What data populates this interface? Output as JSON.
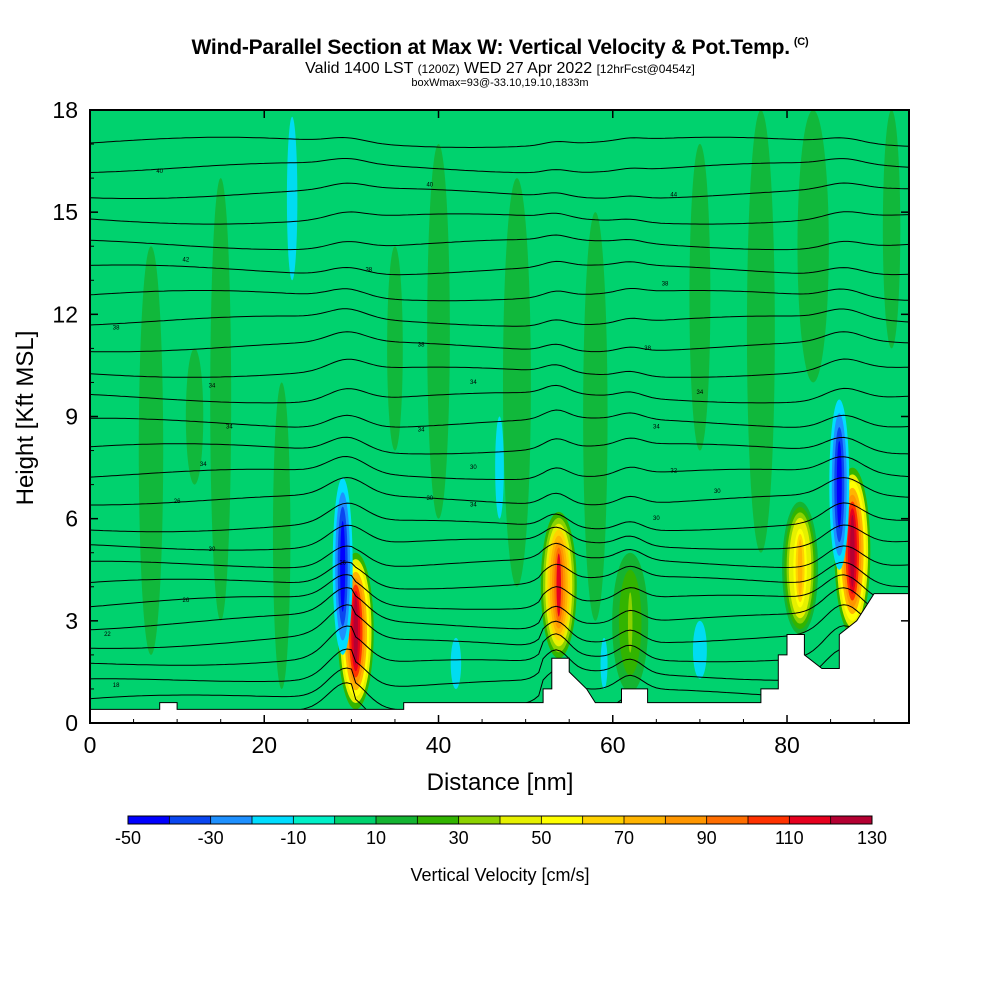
{
  "title": {
    "main": "Wind-Parallel Section at Max W: Vertical Velocity & Pot.Temp.",
    "copyright": "(C)",
    "valid_prefix": "Valid 1400 LST",
    "valid_utc": "(1200Z)",
    "valid_date": "WED 27 Apr 2022",
    "forecast": "[12hrFcst@0454z]",
    "box_info": "boxWmax=93@-33.10,19.10,1833m"
  },
  "chart_data": {
    "type": "heatmap",
    "title": "Wind-Parallel Section at Max W: Vertical Velocity & Pot.Temp.",
    "xlabel": "Distance [nm]",
    "ylabel": "Height [Kft MSL]",
    "xlim": [
      0,
      94
    ],
    "ylim": [
      0,
      18
    ],
    "x_ticks": [
      0,
      20,
      40,
      60,
      80
    ],
    "y_ticks": [
      0,
      3,
      6,
      9,
      12,
      15,
      18
    ],
    "grid": false,
    "colorbar": {
      "label": "Vertical Velocity [cm/s]",
      "min": -50,
      "step": 10,
      "tick_labels": [
        "-50",
        "-30",
        "-10",
        "10",
        "30",
        "50",
        "70",
        "90",
        "110",
        "130"
      ],
      "colors": [
        "#0000ff",
        "#0a46f0",
        "#1e90ff",
        "#00ddff",
        "#00f0c8",
        "#00d26e",
        "#14b432",
        "#32b400",
        "#8cd200",
        "#e6f000",
        "#ffff00",
        "#ffd200",
        "#ffb400",
        "#ff9600",
        "#ff6e00",
        "#ff3200",
        "#e6001e",
        "#b40032"
      ]
    },
    "background_value_cm_s": 0,
    "vertical_velocity_features": [
      {
        "x_center": 30.5,
        "z_bottom": 0.4,
        "z_top": 5.0,
        "w_max": 130,
        "sign": "updraft"
      },
      {
        "x_center": 29.0,
        "z_bottom": 2.0,
        "z_top": 7.2,
        "w_max": -50,
        "sign": "downdraft"
      },
      {
        "x_center": 53.8,
        "z_bottom": 1.9,
        "z_top": 6.2,
        "w_max": 110,
        "sign": "updraft"
      },
      {
        "x_center": 87.5,
        "z_bottom": 2.6,
        "z_top": 7.5,
        "w_max": 130,
        "sign": "updraft"
      },
      {
        "x_center": 86.0,
        "z_bottom": 4.5,
        "z_top": 9.5,
        "w_max": -50,
        "sign": "downdraft"
      },
      {
        "x_center": 81.5,
        "z_bottom": 2.6,
        "z_top": 6.5,
        "w_max": 70,
        "sign": "updraft"
      },
      {
        "x_center": 62.0,
        "z_bottom": 0.9,
        "z_top": 5.0,
        "w_max": 30,
        "sign": "updraft"
      }
    ],
    "theta_contour_labels": [
      {
        "x": 3,
        "z": 1.1,
        "text": "18"
      },
      {
        "x": 2,
        "z": 2.6,
        "text": "22"
      },
      {
        "x": 11,
        "z": 3.6,
        "text": "26"
      },
      {
        "x": 14,
        "z": 5.1,
        "text": "30"
      },
      {
        "x": 10,
        "z": 6.5,
        "text": "26"
      },
      {
        "x": 13,
        "z": 7.6,
        "text": "34"
      },
      {
        "x": 16,
        "z": 8.7,
        "text": "34"
      },
      {
        "x": 14,
        "z": 9.9,
        "text": "34"
      },
      {
        "x": 3,
        "z": 11.6,
        "text": "38"
      },
      {
        "x": 11,
        "z": 13.6,
        "text": "42"
      },
      {
        "x": 8,
        "z": 16.2,
        "text": "40"
      },
      {
        "x": 29,
        "z": 4.7,
        "text": "26"
      },
      {
        "x": 39,
        "z": 6.6,
        "text": "30"
      },
      {
        "x": 38,
        "z": 8.6,
        "text": "34"
      },
      {
        "x": 44,
        "z": 10.0,
        "text": "34"
      },
      {
        "x": 38,
        "z": 11.1,
        "text": "38"
      },
      {
        "x": 32,
        "z": 13.3,
        "text": "38"
      },
      {
        "x": 39,
        "z": 15.8,
        "text": "40"
      },
      {
        "x": 44,
        "z": 6.4,
        "text": "34"
      },
      {
        "x": 44,
        "z": 7.5,
        "text": "30"
      },
      {
        "x": 65,
        "z": 6.0,
        "text": "30"
      },
      {
        "x": 65,
        "z": 8.7,
        "text": "34"
      },
      {
        "x": 67,
        "z": 7.4,
        "text": "32"
      },
      {
        "x": 64,
        "z": 11.0,
        "text": "38"
      },
      {
        "x": 70,
        "z": 9.7,
        "text": "34"
      },
      {
        "x": 66,
        "z": 12.9,
        "text": "38"
      },
      {
        "x": 67,
        "z": 15.5,
        "text": "44"
      },
      {
        "x": 72,
        "z": 6.8,
        "text": "30"
      }
    ]
  }
}
